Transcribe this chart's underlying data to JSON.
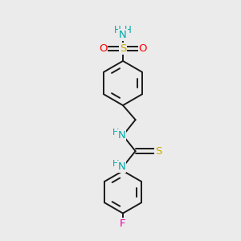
{
  "background_color": "#ebebeb",
  "bond_color": "#1a1a1a",
  "atom_colors": {
    "N": "#00aaaa",
    "O": "#ff0000",
    "S_sulfonamide": "#ccaa00",
    "S_thio": "#ccaa00",
    "F": "#ee00aa",
    "H": "#00aaaa",
    "C": "#1a1a1a"
  },
  "lw": 1.4
}
